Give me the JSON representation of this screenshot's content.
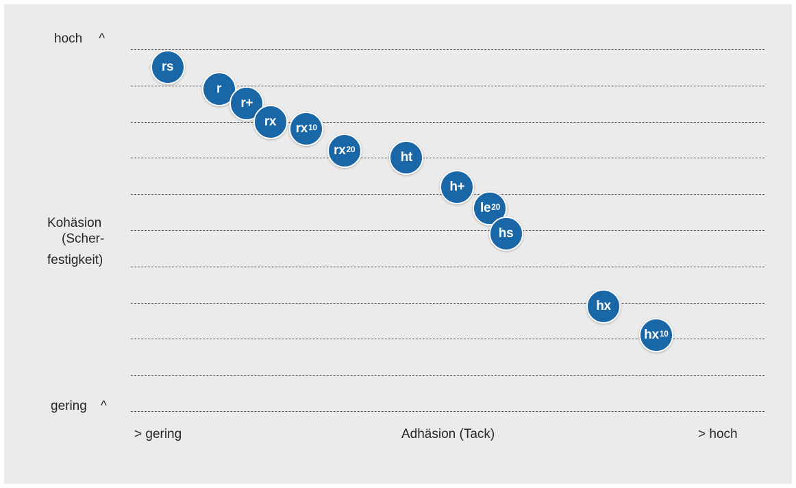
{
  "chart_data": {
    "type": "scatter",
    "title": "",
    "xlabel": "Adhäsion (Tack)",
    "ylabel": [
      "Kohäsion",
      "(Scher-",
      "festigkeit)"
    ],
    "x_min_label": "> gering",
    "x_max_label": "> hoch",
    "y_max_label": "hoch",
    "y_min_label": "gering",
    "y_arrow": "^",
    "grid": true,
    "xlim": [
      0,
      100
    ],
    "ylim": [
      0,
      10
    ],
    "points": [
      {
        "label": "rs",
        "sup": "",
        "x": 5.8,
        "y": 9.5
      },
      {
        "label": "r",
        "sup": "",
        "x": 13.9,
        "y": 8.9
      },
      {
        "label": "r+",
        "sup": "",
        "x": 18.3,
        "y": 8.5
      },
      {
        "label": "rx",
        "sup": "",
        "x": 22.0,
        "y": 8.0
      },
      {
        "label": "rx",
        "sup": "10",
        "x": 27.7,
        "y": 7.8
      },
      {
        "label": "rx",
        "sup": "20",
        "x": 33.7,
        "y": 7.2
      },
      {
        "label": "ht",
        "sup": "",
        "x": 43.5,
        "y": 7.0
      },
      {
        "label": "h+",
        "sup": "",
        "x": 51.5,
        "y": 6.2
      },
      {
        "label": "le",
        "sup": "20",
        "x": 56.7,
        "y": 5.6
      },
      {
        "label": "hs",
        "sup": "",
        "x": 59.2,
        "y": 4.9
      },
      {
        "label": "hx",
        "sup": "",
        "x": 74.6,
        "y": 2.9
      },
      {
        "label": "hx",
        "sup": "10",
        "x": 82.9,
        "y": 2.1
      }
    ],
    "colors": {
      "bubble_fill": "#1a67a8",
      "bubble_text": "#ffffff",
      "background": "#ebebeb",
      "grid": "#4a4a4a"
    }
  }
}
